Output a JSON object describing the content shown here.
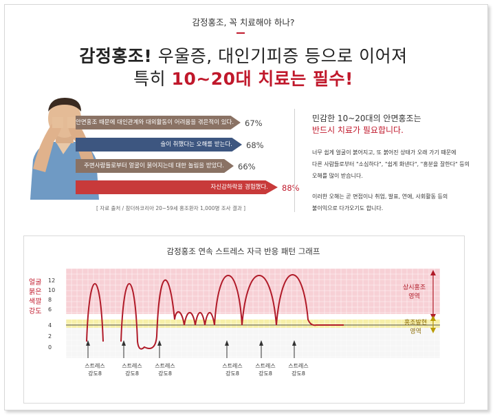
{
  "header": {
    "subtitle": "감정홍조, 꼭 치료해야 하나?",
    "line1_bold": "감정홍조!",
    "line1_rest": " 우울증, 대인기피증 등으로 이어져",
    "line2_lead": "특히 ",
    "line2_red": "10~20대 치료는 필수!"
  },
  "survey": {
    "items": [
      {
        "text": "안면홍조 때문에 대인관계와 대외활동이 어려움을 겪은적이 있다.",
        "pct": "67%",
        "value": 67,
        "color": "#8a7264"
      },
      {
        "text": "술이 취했다는 오해를 받는다.",
        "pct": "68%",
        "value": 68,
        "color": "#3d5680"
      },
      {
        "text": "주변사람들로부터 얼굴이 붉어지는데 대한 놀림을 받았다.",
        "pct": "66%",
        "value": 66,
        "color": "#8a7264"
      },
      {
        "text": "자신감하락을 경험했다.",
        "pct": "88%",
        "value": 88,
        "color": "#c83a3a"
      }
    ],
    "note": "[ 자료 출처 / 참더하코리아 20~59세 홍조환자 1,000명 조사 결과 ]"
  },
  "right_panel": {
    "title1": "민감한 10~20대의 안면홍조는",
    "title2": "반드시 치료가 필요합니다.",
    "para1": [
      "너무 쉽게 얼굴이 붉어지고, 또 붉어진 상태가 오래 가기 때문에",
      "다른 사람들로부터 \"소심하다\", \"쉽게 화낸다\", \"흥분을 잘한다\" 등의",
      "오해를 많이 받습니다."
    ],
    "para2": [
      "이러한 오해는 곧 면접이나 취업, 발표, 연애, 사회활동 등의",
      "불이익으로 다가오기도 합니다."
    ]
  },
  "chart": {
    "title": "감정홍조 연속 스트레스 자극 반응 패턴 그래프",
    "ylabel": [
      "얼굴",
      "붉은",
      "색깔",
      "강도"
    ],
    "ticks": [
      "12",
      "10",
      "8",
      "6",
      "4",
      "2",
      "0"
    ],
    "zone_high": [
      "상시홍조",
      "영역"
    ],
    "zone_mid": [
      "홍조발현",
      "영역"
    ],
    "stimulus_label": [
      "스트레스",
      "강도8"
    ],
    "colors": {
      "high_zone": "#f7d0d5",
      "mid_zone": "#f7f0a8",
      "curve": "#b01a28",
      "baseline": "#555555"
    }
  },
  "chart_data": {
    "type": "line",
    "title": "감정홍조 연속 스트레스 자극 반응 패턴 그래프",
    "ylabel": "얼굴 붉은 색깔 강도",
    "ylim": [
      0,
      12
    ],
    "stimuli": [
      {
        "label": "스트레스 강도8"
      },
      {
        "label": "스트레스 강도8"
      },
      {
        "label": "스트레스 강도8"
      },
      {
        "label": "스트레스 강도8"
      },
      {
        "label": "스트레스 강도8"
      },
      {
        "label": "스트레스 강도8"
      }
    ],
    "zones": [
      {
        "name": "상시홍조 영역",
        "from": 6,
        "to": 13
      },
      {
        "name": "홍조발현 영역",
        "from": 3.5,
        "to": 5
      }
    ],
    "series": [
      {
        "values": [
          1,
          12,
          1,
          12,
          0,
          12,
          5,
          4,
          5,
          4,
          5,
          4,
          12,
          4,
          13,
          4,
          13,
          4,
          4
        ]
      }
    ]
  }
}
